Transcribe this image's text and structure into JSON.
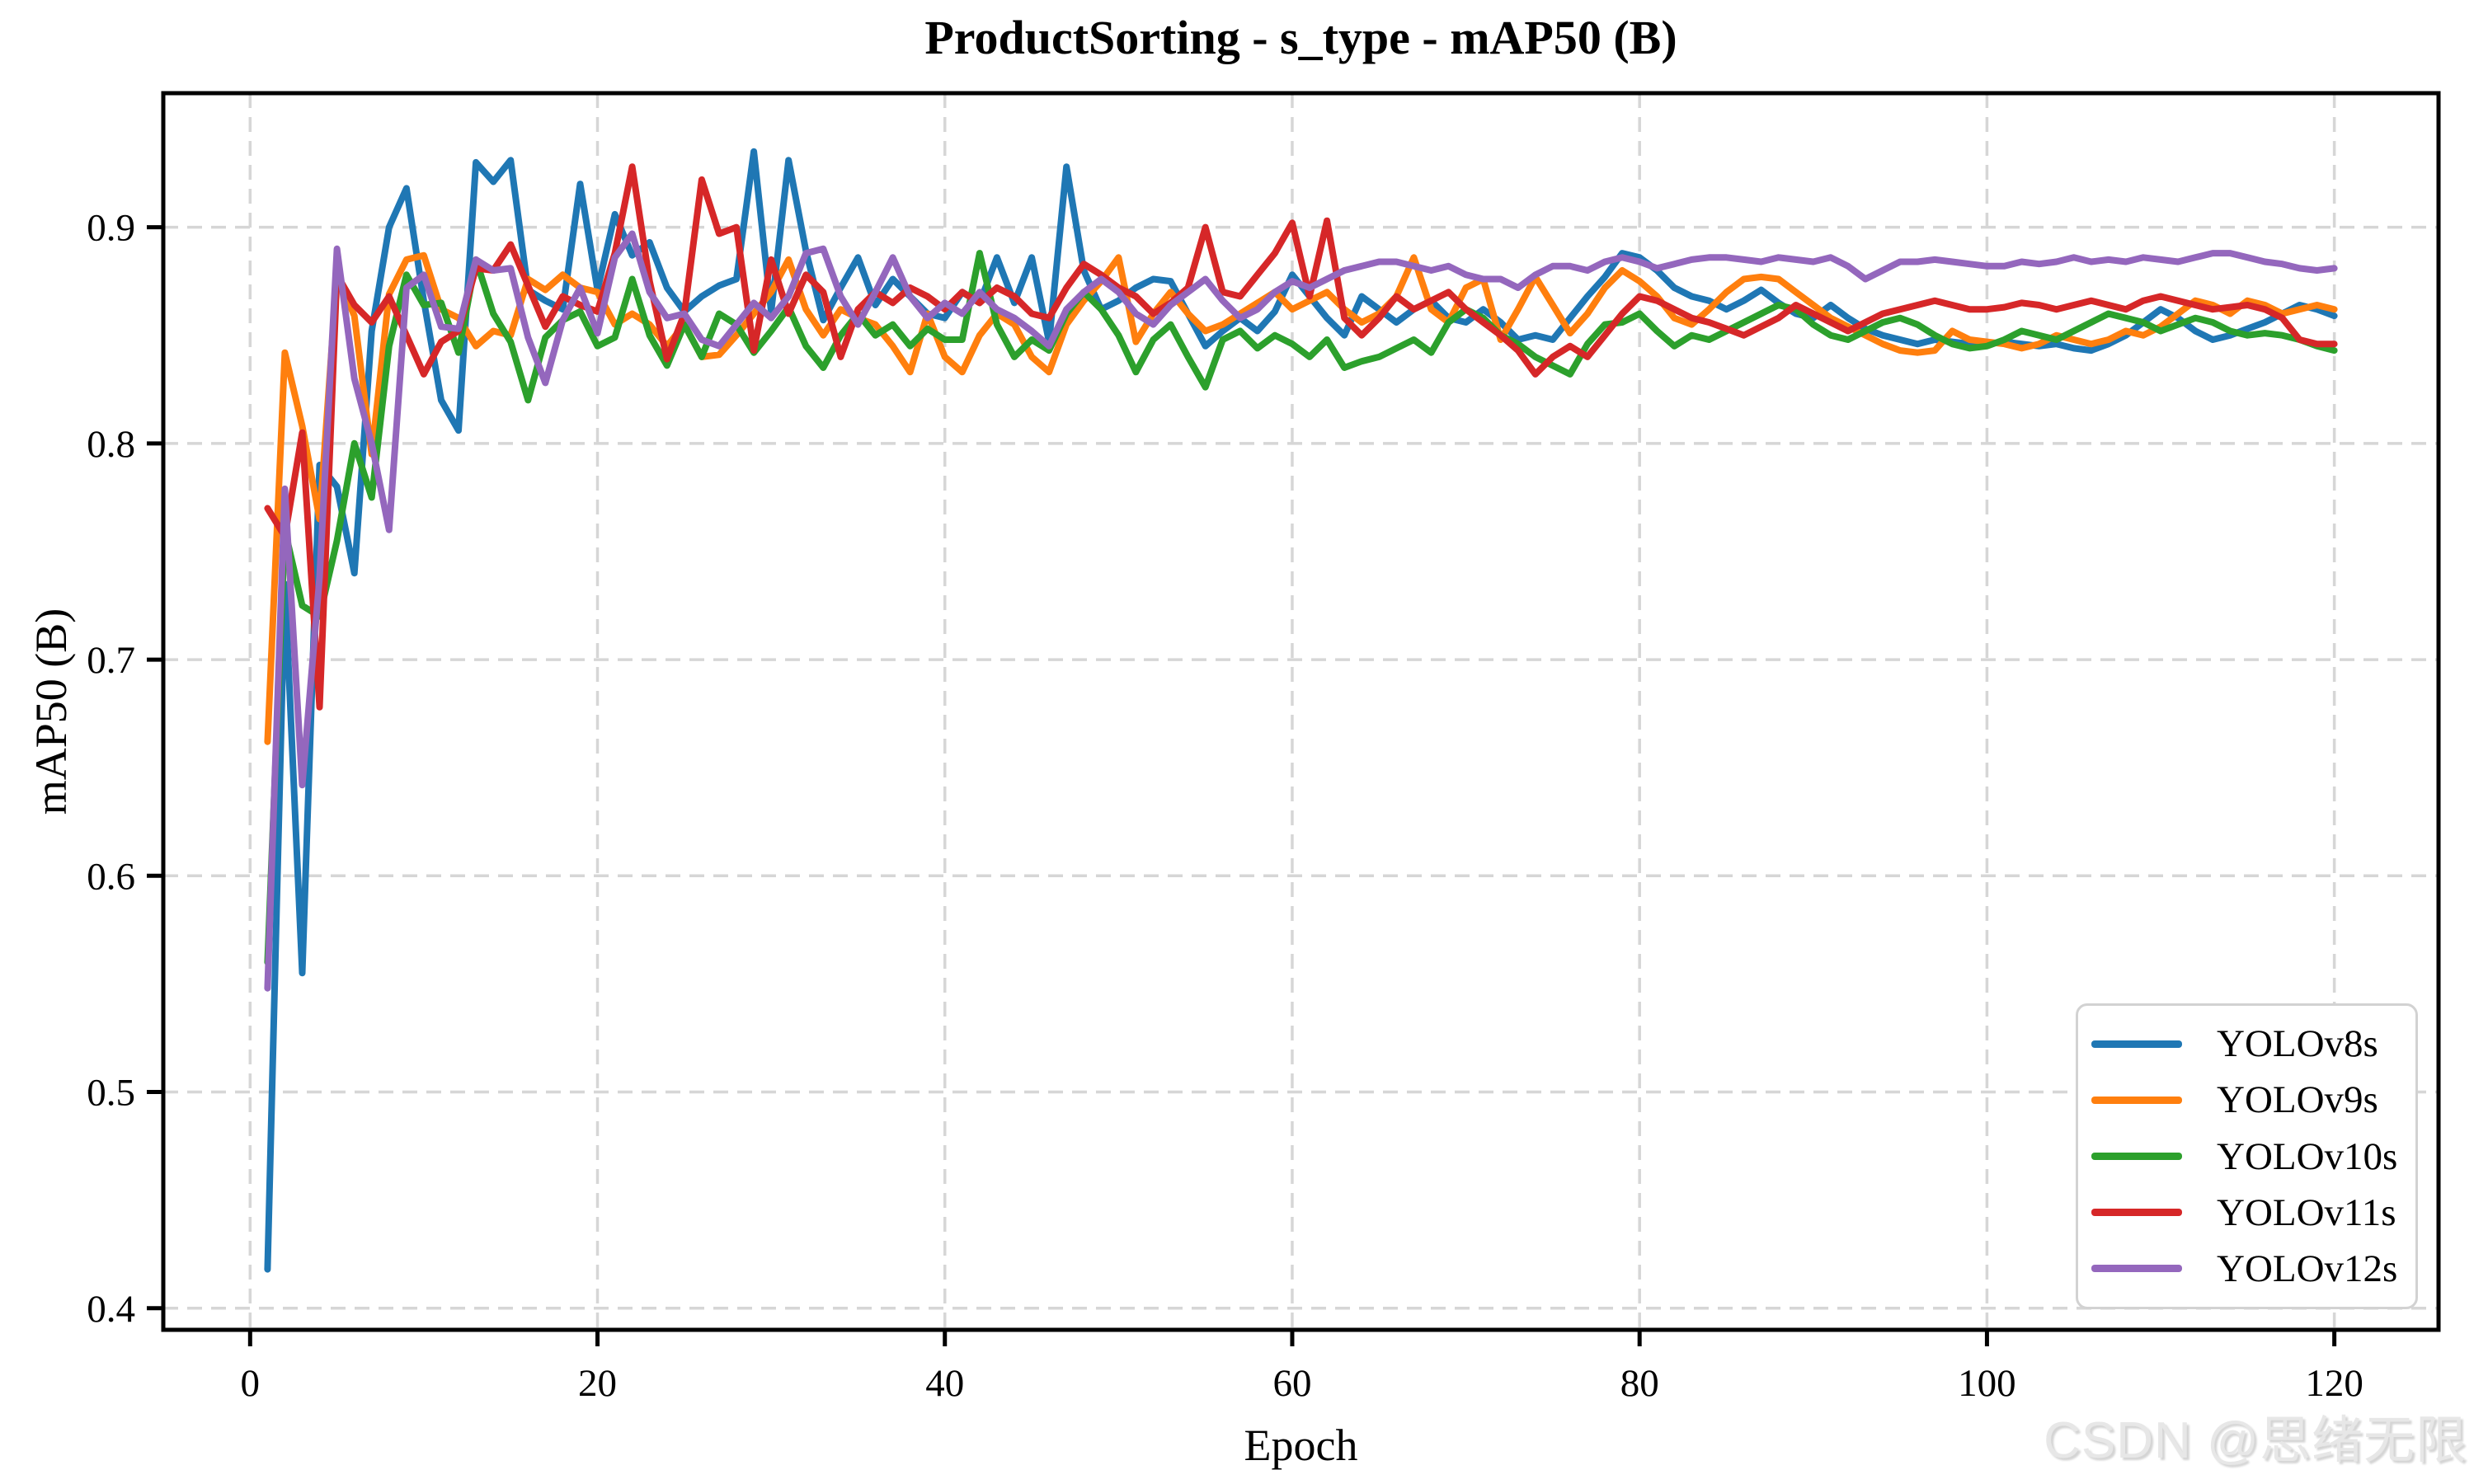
{
  "title": "ProductSorting - s_type - mAP50 (B)",
  "watermark": "CSDN @思绪无限",
  "chart_data": {
    "type": "line",
    "title": "ProductSorting - s_type - mAP50 (B)",
    "xlabel": "Epoch",
    "ylabel": "mAP50 (B)",
    "xlim": [
      -5,
      126
    ],
    "ylim": [
      0.39,
      0.962
    ],
    "x_ticks": [
      0,
      20,
      40,
      60,
      80,
      100,
      120
    ],
    "y_ticks": [
      0.4,
      0.5,
      0.6,
      0.7,
      0.8,
      0.9
    ],
    "grid": true,
    "grid_style": "dashed",
    "legend_position": "lower right",
    "x": [
      1,
      2,
      3,
      4,
      5,
      6,
      7,
      8,
      9,
      10,
      11,
      12,
      13,
      14,
      15,
      16,
      17,
      18,
      19,
      20,
      21,
      22,
      23,
      24,
      25,
      26,
      27,
      28,
      29,
      30,
      31,
      32,
      33,
      34,
      35,
      36,
      37,
      38,
      39,
      40,
      41,
      42,
      43,
      44,
      45,
      46,
      47,
      48,
      49,
      50,
      51,
      52,
      53,
      54,
      55,
      56,
      57,
      58,
      59,
      60,
      61,
      62,
      63,
      64,
      65,
      66,
      67,
      68,
      69,
      70,
      71,
      72,
      73,
      74,
      75,
      76,
      77,
      78,
      79,
      80,
      81,
      82,
      83,
      84,
      85,
      86,
      87,
      88,
      89,
      90,
      91,
      92,
      93,
      94,
      95,
      96,
      97,
      98,
      99,
      100,
      101,
      102,
      103,
      104,
      105,
      106,
      107,
      108,
      109,
      110,
      111,
      112,
      113,
      114,
      115,
      116,
      117,
      118,
      119,
      120
    ],
    "series": [
      {
        "name": "YOLOv8s",
        "color": "#1f77b4",
        "values": [
          0.418,
          0.735,
          0.555,
          0.79,
          0.78,
          0.74,
          0.852,
          0.9,
          0.918,
          0.866,
          0.82,
          0.806,
          0.93,
          0.921,
          0.931,
          0.871,
          0.866,
          0.862,
          0.92,
          0.871,
          0.906,
          0.887,
          0.893,
          0.872,
          0.861,
          0.868,
          0.873,
          0.876,
          0.935,
          0.861,
          0.931,
          0.889,
          0.857,
          0.872,
          0.886,
          0.864,
          0.876,
          0.868,
          0.86,
          0.858,
          0.87,
          0.865,
          0.886,
          0.865,
          0.886,
          0.847,
          0.928,
          0.88,
          0.862,
          0.866,
          0.872,
          0.876,
          0.875,
          0.86,
          0.845,
          0.852,
          0.858,
          0.852,
          0.861,
          0.878,
          0.868,
          0.858,
          0.85,
          0.868,
          0.862,
          0.856,
          0.862,
          0.866,
          0.858,
          0.856,
          0.862,
          0.856,
          0.848,
          0.85,
          0.848,
          0.858,
          0.868,
          0.877,
          0.888,
          0.886,
          0.88,
          0.872,
          0.868,
          0.866,
          0.862,
          0.866,
          0.871,
          0.865,
          0.86,
          0.858,
          0.864,
          0.858,
          0.853,
          0.85,
          0.848,
          0.846,
          0.848,
          0.847,
          0.846,
          0.846,
          0.847,
          0.846,
          0.845,
          0.846,
          0.844,
          0.843,
          0.846,
          0.85,
          0.856,
          0.862,
          0.858,
          0.852,
          0.848,
          0.85,
          0.853,
          0.856,
          0.86,
          0.864,
          0.862,
          0.859
        ]
      },
      {
        "name": "YOLOv9s",
        "color": "#ff7f0e",
        "values": [
          0.662,
          0.842,
          0.808,
          0.765,
          0.878,
          0.859,
          0.795,
          0.869,
          0.885,
          0.887,
          0.862,
          0.858,
          0.845,
          0.852,
          0.85,
          0.876,
          0.871,
          0.878,
          0.872,
          0.87,
          0.855,
          0.86,
          0.855,
          0.845,
          0.855,
          0.84,
          0.841,
          0.85,
          0.86,
          0.87,
          0.885,
          0.862,
          0.85,
          0.862,
          0.858,
          0.855,
          0.845,
          0.833,
          0.86,
          0.84,
          0.833,
          0.85,
          0.86,
          0.855,
          0.84,
          0.833,
          0.855,
          0.866,
          0.875,
          0.886,
          0.847,
          0.86,
          0.87,
          0.86,
          0.852,
          0.855,
          0.86,
          0.865,
          0.87,
          0.862,
          0.866,
          0.87,
          0.862,
          0.856,
          0.86,
          0.868,
          0.886,
          0.862,
          0.856,
          0.872,
          0.876,
          0.848,
          0.862,
          0.877,
          0.864,
          0.851,
          0.86,
          0.872,
          0.88,
          0.875,
          0.868,
          0.858,
          0.855,
          0.862,
          0.87,
          0.876,
          0.877,
          0.876,
          0.87,
          0.864,
          0.858,
          0.854,
          0.85,
          0.846,
          0.843,
          0.842,
          0.843,
          0.852,
          0.848,
          0.847,
          0.846,
          0.844,
          0.846,
          0.85,
          0.848,
          0.846,
          0.848,
          0.852,
          0.85,
          0.854,
          0.86,
          0.866,
          0.864,
          0.86,
          0.866,
          0.864,
          0.86,
          0.862,
          0.864,
          0.862
        ]
      },
      {
        "name": "YOLOv10s",
        "color": "#2ca02c",
        "values": [
          0.56,
          0.76,
          0.725,
          0.72,
          0.755,
          0.8,
          0.775,
          0.845,
          0.878,
          0.864,
          0.865,
          0.842,
          0.885,
          0.86,
          0.847,
          0.82,
          0.849,
          0.857,
          0.861,
          0.845,
          0.849,
          0.876,
          0.85,
          0.836,
          0.855,
          0.84,
          0.86,
          0.855,
          0.842,
          0.852,
          0.863,
          0.845,
          0.835,
          0.85,
          0.86,
          0.85,
          0.855,
          0.845,
          0.853,
          0.848,
          0.848,
          0.888,
          0.855,
          0.84,
          0.848,
          0.843,
          0.86,
          0.87,
          0.862,
          0.85,
          0.833,
          0.848,
          0.855,
          0.84,
          0.826,
          0.848,
          0.852,
          0.844,
          0.85,
          0.846,
          0.84,
          0.848,
          0.835,
          0.838,
          0.84,
          0.844,
          0.848,
          0.842,
          0.856,
          0.862,
          0.858,
          0.85,
          0.846,
          0.84,
          0.836,
          0.832,
          0.846,
          0.855,
          0.856,
          0.86,
          0.852,
          0.845,
          0.85,
          0.848,
          0.852,
          0.856,
          0.86,
          0.864,
          0.862,
          0.855,
          0.85,
          0.848,
          0.852,
          0.856,
          0.858,
          0.855,
          0.85,
          0.846,
          0.844,
          0.845,
          0.848,
          0.852,
          0.85,
          0.848,
          0.852,
          0.856,
          0.86,
          0.858,
          0.856,
          0.852,
          0.855,
          0.858,
          0.856,
          0.852,
          0.85,
          0.851,
          0.85,
          0.848,
          0.845,
          0.843
        ]
      },
      {
        "name": "YOLOv11s",
        "color": "#d62728",
        "values": [
          0.77,
          0.757,
          0.805,
          0.678,
          0.878,
          0.864,
          0.856,
          0.868,
          0.85,
          0.832,
          0.847,
          0.852,
          0.881,
          0.88,
          0.892,
          0.873,
          0.854,
          0.868,
          0.864,
          0.861,
          0.888,
          0.928,
          0.875,
          0.839,
          0.86,
          0.922,
          0.897,
          0.9,
          0.843,
          0.885,
          0.86,
          0.878,
          0.87,
          0.84,
          0.862,
          0.87,
          0.865,
          0.872,
          0.868,
          0.862,
          0.87,
          0.865,
          0.872,
          0.868,
          0.86,
          0.858,
          0.872,
          0.883,
          0.878,
          0.872,
          0.868,
          0.86,
          0.865,
          0.872,
          0.9,
          0.87,
          0.868,
          0.878,
          0.888,
          0.902,
          0.868,
          0.903,
          0.858,
          0.85,
          0.858,
          0.868,
          0.862,
          0.866,
          0.87,
          0.862,
          0.856,
          0.85,
          0.843,
          0.832,
          0.84,
          0.845,
          0.84,
          0.85,
          0.86,
          0.868,
          0.866,
          0.862,
          0.858,
          0.856,
          0.853,
          0.85,
          0.854,
          0.858,
          0.864,
          0.86,
          0.856,
          0.852,
          0.856,
          0.86,
          0.862,
          0.864,
          0.866,
          0.864,
          0.862,
          0.862,
          0.863,
          0.865,
          0.864,
          0.862,
          0.864,
          0.866,
          0.864,
          0.862,
          0.866,
          0.868,
          0.866,
          0.864,
          0.862,
          0.863,
          0.864,
          0.862,
          0.858,
          0.848,
          0.846,
          0.846
        ]
      },
      {
        "name": "YOLOv12s",
        "color": "#9467bd",
        "values": [
          0.548,
          0.779,
          0.642,
          0.738,
          0.89,
          0.83,
          0.8,
          0.76,
          0.872,
          0.878,
          0.854,
          0.853,
          0.885,
          0.88,
          0.881,
          0.849,
          0.828,
          0.857,
          0.872,
          0.851,
          0.886,
          0.897,
          0.87,
          0.858,
          0.86,
          0.848,
          0.845,
          0.855,
          0.865,
          0.858,
          0.868,
          0.888,
          0.89,
          0.868,
          0.855,
          0.87,
          0.886,
          0.868,
          0.858,
          0.865,
          0.86,
          0.87,
          0.862,
          0.858,
          0.852,
          0.845,
          0.862,
          0.87,
          0.876,
          0.87,
          0.86,
          0.855,
          0.864,
          0.87,
          0.876,
          0.866,
          0.858,
          0.862,
          0.87,
          0.875,
          0.872,
          0.876,
          0.88,
          0.882,
          0.884,
          0.884,
          0.882,
          0.88,
          0.882,
          0.878,
          0.876,
          0.876,
          0.872,
          0.878,
          0.882,
          0.882,
          0.88,
          0.884,
          0.886,
          0.884,
          0.881,
          0.883,
          0.885,
          0.886,
          0.886,
          0.885,
          0.884,
          0.886,
          0.885,
          0.884,
          0.886,
          0.882,
          0.876,
          0.88,
          0.884,
          0.884,
          0.885,
          0.884,
          0.883,
          0.882,
          0.882,
          0.884,
          0.883,
          0.884,
          0.886,
          0.884,
          0.885,
          0.884,
          0.886,
          0.885,
          0.884,
          0.886,
          0.888,
          0.888,
          0.886,
          0.884,
          0.883,
          0.881,
          0.88,
          0.881
        ]
      }
    ]
  }
}
